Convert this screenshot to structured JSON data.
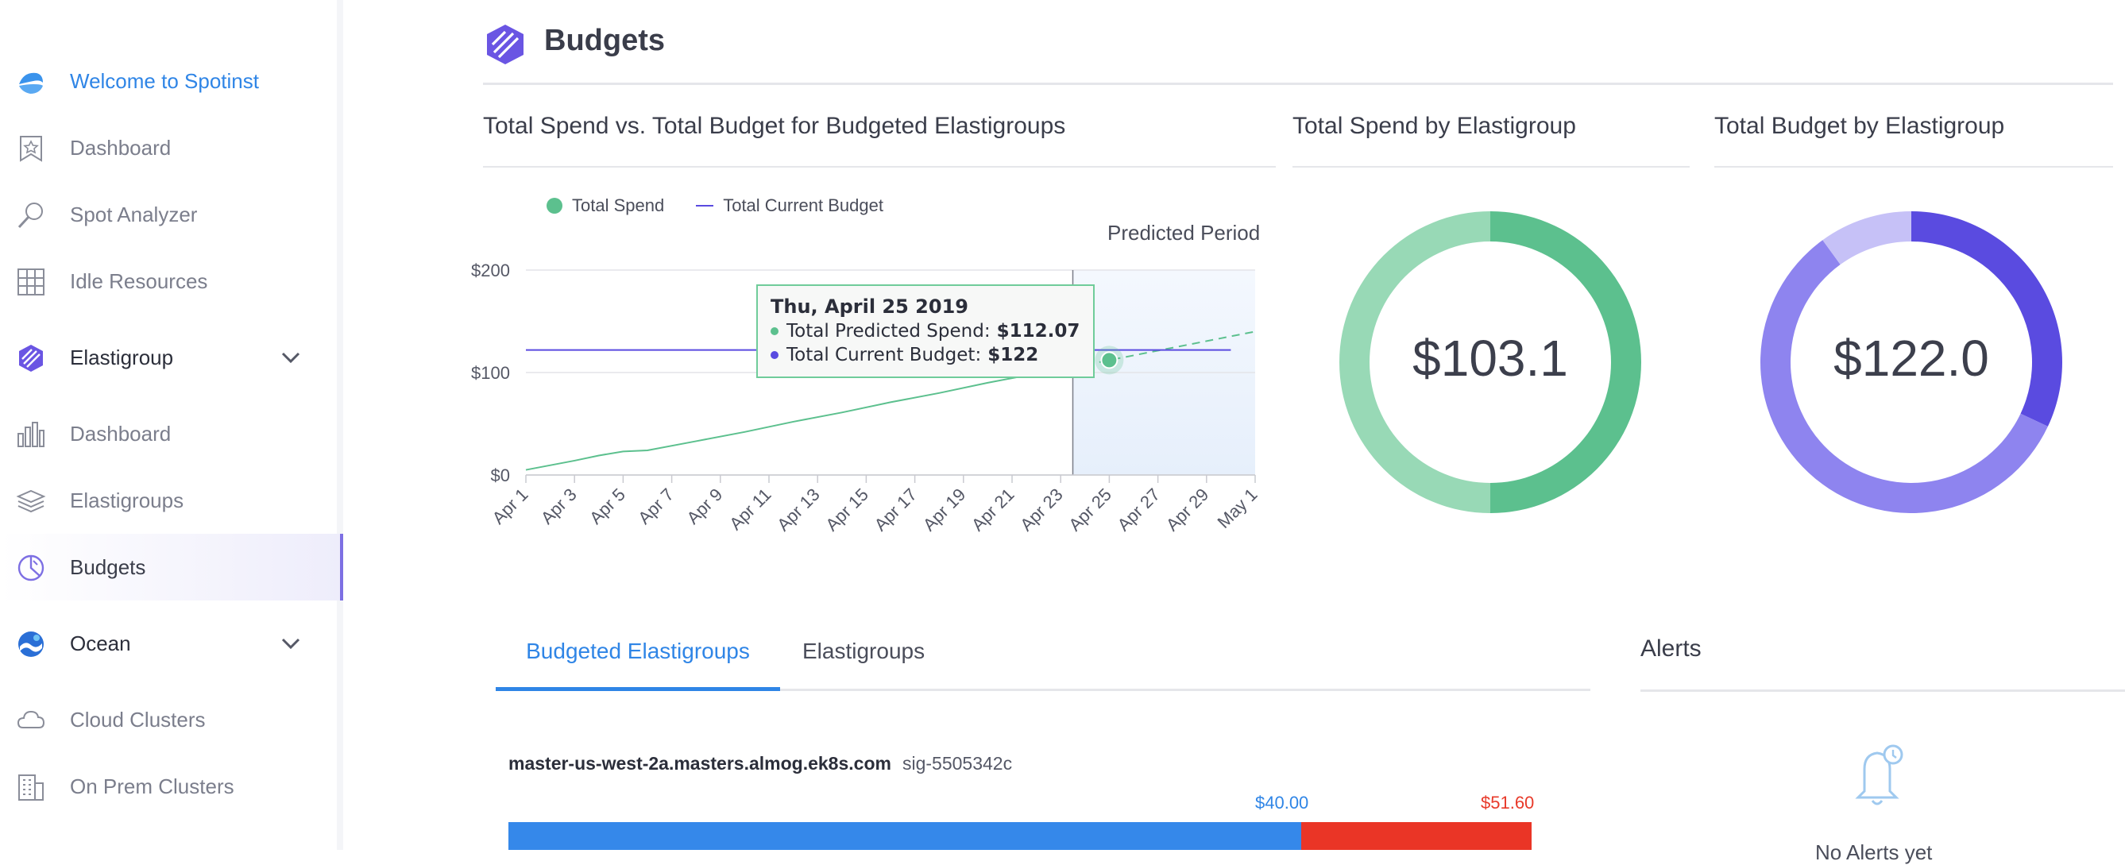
{
  "sidebar": {
    "items": [
      {
        "label": "Welcome to Spotinst",
        "icon": "spotinst-logo-icon"
      },
      {
        "label": "Dashboard",
        "icon": "star-bookmark-icon"
      },
      {
        "label": "Spot Analyzer",
        "icon": "magnifier-icon"
      },
      {
        "label": "Idle Resources",
        "icon": "grid-icon"
      },
      {
        "label": "Elastigroup",
        "icon": "elastigroup-logo-icon"
      },
      {
        "label": "Dashboard",
        "icon": "bar-chart-icon"
      },
      {
        "label": "Elastigroups",
        "icon": "layers-icon"
      },
      {
        "label": "Budgets",
        "icon": "pie-icon"
      },
      {
        "label": "Ocean",
        "icon": "ocean-logo-icon"
      },
      {
        "label": "Cloud Clusters",
        "icon": "cloud-icon"
      },
      {
        "label": "On Prem Clusters",
        "icon": "building-icon"
      }
    ]
  },
  "page": {
    "title": "Budgets"
  },
  "cards": {
    "spend_vs_budget": "Total Spend vs. Total Budget for Budgeted Elastigroups",
    "spend_by_eg": "Total Spend by Elastigroup",
    "budget_by_eg": "Total Budget by Elastigroup"
  },
  "legend": {
    "spend": "Total Spend",
    "budget": "Total Current Budget"
  },
  "predicted_label": "Predicted Period",
  "tooltip": {
    "date": "Thu, April 25 2019",
    "row1_label": "Total Predicted Spend:",
    "row1_value": "$112.07",
    "row2_label": "Total Current Budget:",
    "row2_value": "$122"
  },
  "chart_data": {
    "type": "line",
    "y_ticks": [
      "$200",
      "$100",
      "$0"
    ],
    "x_ticks": [
      "Apr 1",
      "Apr 3",
      "Apr 5",
      "Apr 7",
      "Apr 9",
      "Apr 11",
      "Apr 13",
      "Apr 15",
      "Apr 17",
      "Apr 19",
      "Apr 21",
      "Apr 23",
      "Apr 25",
      "Apr 27",
      "Apr 29",
      "May 1"
    ],
    "ylim": [
      0,
      200
    ],
    "xlim_days": [
      1,
      31
    ],
    "predicted_start_day": 23.5,
    "series": [
      {
        "name": "Total Spend",
        "color": "#5cc08e",
        "days": [
          1,
          3,
          4,
          5,
          6,
          8,
          10,
          12,
          14,
          16,
          18,
          20,
          22,
          23.5
        ],
        "values": [
          5,
          14,
          19,
          23,
          24,
          33,
          42,
          52,
          61,
          71,
          80,
          90,
          99,
          105
        ]
      },
      {
        "name": "Total Predicted Spend",
        "color": "#5cc08e",
        "dashed": true,
        "days": [
          23.5,
          25,
          31
        ],
        "values": [
          105,
          112.07,
          140
        ]
      },
      {
        "name": "Total Current Budget",
        "color": "#5a4be0",
        "days": [
          1,
          30
        ],
        "values": [
          122,
          122
        ]
      }
    ],
    "highlight": {
      "day": 25,
      "value": 112.07
    }
  },
  "donuts": {
    "spend": {
      "value": "$103.1",
      "segments": [
        0.5,
        0.5
      ],
      "colors": [
        "#5cc08e",
        "#98d9b6"
      ]
    },
    "budget": {
      "value": "$122.0",
      "segments": [
        0.32,
        0.58,
        0.1
      ],
      "colors": [
        "#5a4be0",
        "#8e84ef",
        "#c6c1f7"
      ]
    }
  },
  "tabs": [
    "Budgeted Elastigroups",
    "Elastigroups"
  ],
  "alerts": {
    "title": "Alerts",
    "empty": "No Alerts yet"
  },
  "elastigroup_row": {
    "name": "master-us-west-2a.masters.almog.ek8s.com",
    "id": "sig-5505342c",
    "spend_label": "$40.00",
    "budget_label": "$51.60",
    "spend_fraction": 0.775
  }
}
